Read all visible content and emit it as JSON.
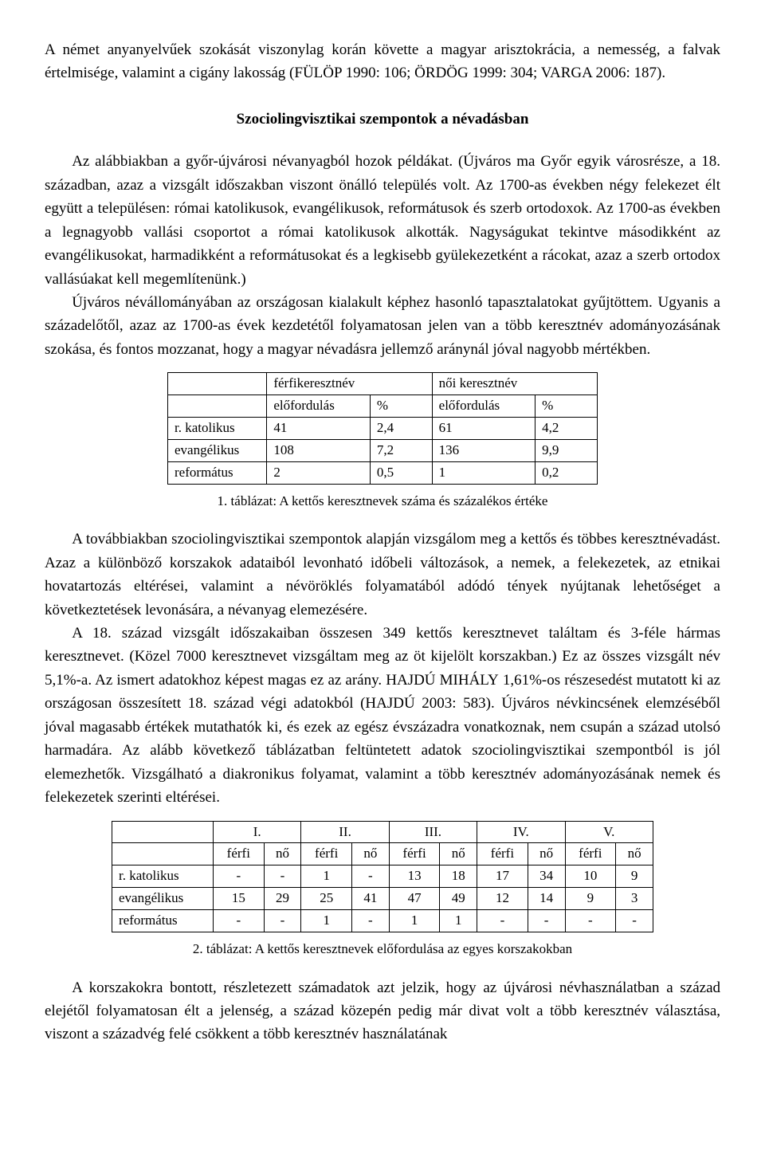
{
  "para1": "A német anyanyelvűek szokását viszonylag korán követte a magyar arisztokrácia, a nemesség, a falvak értelmisége, valamint a cigány lakosság (FÜLÖP 1990: 106; ÖRDÖG 1999: 304; VARGA 2006: 187).",
  "heading": "Szociolingvisztikai szempontok a névadásban",
  "para2": "Az alábbiakban a győr-újvárosi névanyagból hozok példákat. (Újváros ma Győr egyik városrésze, a 18. században, azaz a vizsgált időszakban viszont önálló település volt. Az 1700-as években négy felekezet élt együtt a településen: római katolikusok, evangélikusok, reformátusok és szerb ortodoxok. Az 1700-as években a legnagyobb vallási csoportot a római katolikusok alkották. Nagyságukat tekintve másodikként az evangélikusokat, harmadikként a reformátusokat és a legkisebb gyülekezetként a rácokat, azaz a szerb ortodox vallásúakat kell megemlítenünk.)",
  "para3": "Újváros névállományában az országosan kialakult képhez hasonló tapasztalatokat gyűjtöttem. Ugyanis a századelőtől, azaz az 1700-as évek kezdetétől folyamatosan jelen van a több keresztnév adományozásának szokása, és fontos mozzanat, hogy a magyar névadásra jellemző aránynál jóval nagyobb mértékben.",
  "table1": {
    "head": {
      "male": "férfikeresztnév",
      "female": "női keresztnév",
      "occ": "előfordulás",
      "pct": "%"
    },
    "rows": [
      {
        "label": "r. katolikus",
        "m_n": "41",
        "m_pct": "2,4",
        "f_n": "61",
        "f_pct": "4,2"
      },
      {
        "label": "evangélikus",
        "m_n": "108",
        "m_pct": "7,2",
        "f_n": "136",
        "f_pct": "9,9"
      },
      {
        "label": "református",
        "m_n": "2",
        "m_pct": "0,5",
        "f_n": "1",
        "f_pct": "0,2"
      }
    ]
  },
  "caption1": "1. táblázat: A kettős keresztnevek száma és százalékos értéke",
  "para4": "A továbbiakban szociolingvisztikai szempontok alapján vizsgálom meg a kettős és többes keresztnévadást. Azaz a különböző korszakok adataiból levonható időbeli változások, a nemek, a felekezetek, az etnikai hovatartozás eltérései, valamint a névöröklés folyamatából adódó tények nyújtanak lehetőséget a következtetések levonására, a névanyag elemezésére.",
  "para5_a": "A 18. század vizsgált időszakaiban összesen 349 kettős keresztnevet találtam és 3-féle hármas keresztnevet. (Közel 7000 keresztnevet vizsgáltam meg az öt kijelölt korszakban.) Ez az összes vizsgált név 5,1%-a. Az ismert adatokhoz képest magas ez az arány. ",
  "para5_hajdu": "HAJDÚ MIHÁLY",
  "para5_b": " 1,61%-os részesedést mutatott ki az országosan összesített 18. század végi adatokból (",
  "para5_hajdu2": "HAJDÚ",
  "para5_c": " 2003: 583). Újváros névkincsének elemzéséből jóval magasabb értékek mutathatók ki, és ezek az egész évszázadra vonatkoznak, nem csupán a század utolsó harmadára. Az alább következő táblázatban feltüntetett adatok szociolingvisztikai szempontból is jól elemezhetők. Vizsgálható a diakronikus folyamat, valamint a több keresztnév adományozásának nemek és felekezetek szerinti eltérései.",
  "table2": {
    "periods": [
      "I.",
      "II.",
      "III.",
      "IV.",
      "V."
    ],
    "genders": {
      "m": "férfi",
      "f": "nő"
    },
    "rows": [
      {
        "label": "r. katolikus",
        "cells": [
          "-",
          "-",
          "1",
          "-",
          "13",
          "18",
          "17",
          "34",
          "10",
          "9"
        ]
      },
      {
        "label": "evangélikus",
        "cells": [
          "15",
          "29",
          "25",
          "41",
          "47",
          "49",
          "12",
          "14",
          "9",
          "3"
        ]
      },
      {
        "label": "református",
        "cells": [
          "-",
          "-",
          "1",
          "-",
          "1",
          "1",
          "-",
          "-",
          "-",
          "-"
        ]
      }
    ]
  },
  "caption2": "2. táblázat: A kettős keresztnevek előfordulása az egyes korszakokban",
  "para6": "A korszakokra bontott, részletezett számadatok azt jelzik, hogy az újvárosi névhasználatban a század elejétől folyamatosan élt a jelenség, a század közepén pedig már divat volt a több keresztnév választása, viszont a századvég felé csökkent a több keresztnév használatának"
}
